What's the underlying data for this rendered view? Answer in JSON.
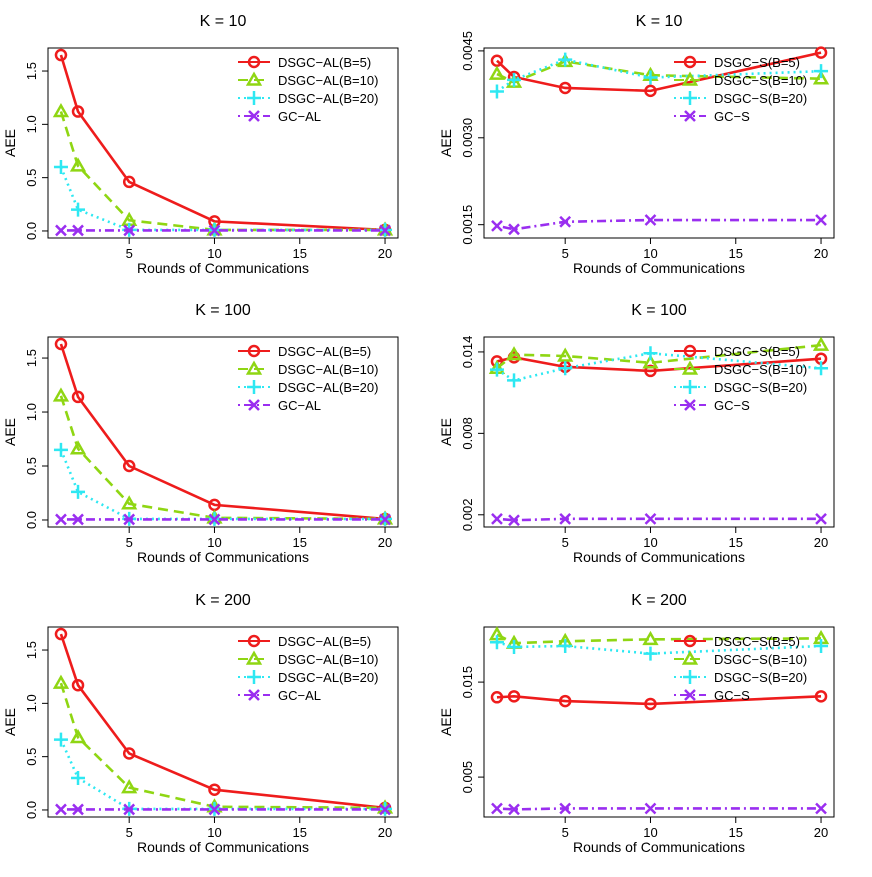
{
  "chart_data": [
    {
      "type": "line",
      "title": "K = 10",
      "xlabel": "Rounds of Communications",
      "ylabel": "AEE",
      "x": [
        1,
        2,
        5,
        10,
        20
      ],
      "xticks": [
        5,
        10,
        15,
        20
      ],
      "xtick_labels": [
        "5",
        "10",
        "15",
        "20"
      ],
      "xlim": [
        0.24,
        20.76
      ],
      "ylim": [
        -0.066,
        1.716
      ],
      "yticks": [
        0,
        0.5,
        1,
        1.5
      ],
      "ytick_labels": [
        "0.0",
        "0.5",
        "1.0",
        "1.5"
      ],
      "legend_position": "top-right",
      "series": [
        {
          "name": "DSGC−AL(B=5)",
          "values": [
            1.65,
            1.12,
            0.46,
            0.09,
            0.01
          ],
          "color": "#ee1c1c",
          "marker": "circle",
          "dash": "solid"
        },
        {
          "name": "DSGC−AL(B=10)",
          "values": [
            1.12,
            0.61,
            0.1,
            0.01,
            0.01
          ],
          "color": "#8fd613",
          "marker": "triangle",
          "dash": "dashed"
        },
        {
          "name": "DSGC−AL(B=20)",
          "values": [
            0.6,
            0.2,
            0.01,
            0.01,
            0.01
          ],
          "color": "#2ee8f2",
          "marker": "plus",
          "dash": "dotted"
        },
        {
          "name": "GC−AL",
          "values": [
            0.005,
            0.005,
            0.005,
            0.005,
            0.005
          ],
          "color": "#9a2ef0",
          "marker": "cross",
          "dash": "dotdash"
        }
      ]
    },
    {
      "type": "line",
      "title": "K = 10",
      "xlabel": "Rounds of Communications",
      "ylabel": "AEE",
      "x": [
        1,
        2,
        5,
        10,
        20
      ],
      "xticks": [
        5,
        10,
        15,
        20
      ],
      "xtick_labels": [
        "5",
        "10",
        "15",
        "20"
      ],
      "xlim": [
        0.24,
        20.76
      ],
      "ylim": [
        0.00127,
        0.00455
      ],
      "yticks": [
        0.0015,
        0.003,
        0.0045
      ],
      "ytick_labels": [
        "0.0015",
        "0.0030",
        "0.0045"
      ],
      "legend_position": "top-right",
      "series": [
        {
          "name": "DSGC−S(B=5)",
          "values": [
            0.00433,
            0.00405,
            0.00386,
            0.00381,
            0.00447
          ],
          "color": "#ee1c1c",
          "marker": "circle",
          "dash": "solid"
        },
        {
          "name": "DSGC−S(B=10)",
          "values": [
            0.0041,
            0.00396,
            0.00432,
            0.00408,
            0.00402
          ],
          "color": "#8fd613",
          "marker": "triangle",
          "dash": "dashed"
        },
        {
          "name": "DSGC−S(B=20)",
          "values": [
            0.0038,
            0.004,
            0.00435,
            0.00404,
            0.00415
          ],
          "color": "#2ee8f2",
          "marker": "plus",
          "dash": "dotted"
        },
        {
          "name": "GC−S",
          "values": [
            0.00148,
            0.00142,
            0.00155,
            0.00158,
            0.00158
          ],
          "color": "#9a2ef0",
          "marker": "cross",
          "dash": "dotdash"
        }
      ]
    },
    {
      "type": "line",
      "title": "K = 100",
      "xlabel": "Rounds of Communications",
      "ylabel": "AEE",
      "x": [
        1,
        2,
        5,
        10,
        20
      ],
      "xticks": [
        5,
        10,
        15,
        20
      ],
      "xtick_labels": [
        "5",
        "10",
        "15",
        "20"
      ],
      "xlim": [
        0.24,
        20.76
      ],
      "ylim": [
        -0.065,
        1.695
      ],
      "yticks": [
        0,
        0.5,
        1,
        1.5
      ],
      "ytick_labels": [
        "0.0",
        "0.5",
        "1.0",
        "1.5"
      ],
      "legend_position": "top-right",
      "series": [
        {
          "name": "DSGC−AL(B=5)",
          "values": [
            1.63,
            1.14,
            0.5,
            0.14,
            0.01
          ],
          "color": "#ee1c1c",
          "marker": "circle",
          "dash": "solid"
        },
        {
          "name": "DSGC−AL(B=10)",
          "values": [
            1.15,
            0.66,
            0.15,
            0.02,
            0.01
          ],
          "color": "#8fd613",
          "marker": "triangle",
          "dash": "dashed"
        },
        {
          "name": "DSGC−AL(B=20)",
          "values": [
            0.65,
            0.26,
            0.01,
            0.01,
            0.01
          ],
          "color": "#2ee8f2",
          "marker": "plus",
          "dash": "dotted"
        },
        {
          "name": "GC−AL",
          "values": [
            0.005,
            0.005,
            0.005,
            0.005,
            0.005
          ],
          "color": "#9a2ef0",
          "marker": "cross",
          "dash": "dotdash"
        }
      ]
    },
    {
      "type": "line",
      "title": "K = 100",
      "xlabel": "Rounds of Communications",
      "ylabel": "AEE",
      "x": [
        1,
        2,
        5,
        10,
        20
      ],
      "xticks": [
        5,
        10,
        15,
        20
      ],
      "xtick_labels": [
        "5",
        "10",
        "15",
        "20"
      ],
      "xlim": [
        0.24,
        20.76
      ],
      "ylim": [
        0.0011,
        0.0151
      ],
      "yticks": [
        0.002,
        0.008,
        0.014
      ],
      "ytick_labels": [
        "0.002",
        "0.008",
        "0.014"
      ],
      "legend_position": "top-right",
      "series": [
        {
          "name": "DSGC−S(B=5)",
          "values": [
            0.0133,
            0.0136,
            0.0129,
            0.0126,
            0.0135
          ],
          "color": "#ee1c1c",
          "marker": "circle",
          "dash": "solid"
        },
        {
          "name": "DSGC−S(B=10)",
          "values": [
            0.0128,
            0.0138,
            0.0137,
            0.0132,
            0.0145
          ],
          "color": "#8fd613",
          "marker": "triangle",
          "dash": "dashed"
        },
        {
          "name": "DSGC−S(B=20)",
          "values": [
            0.0127,
            0.0119,
            0.0128,
            0.0139,
            0.0128
          ],
          "color": "#2ee8f2",
          "marker": "plus",
          "dash": "dotted"
        },
        {
          "name": "GC−S",
          "values": [
            0.0017,
            0.0016,
            0.0017,
            0.0017,
            0.0017
          ],
          "color": "#9a2ef0",
          "marker": "cross",
          "dash": "dotdash"
        }
      ]
    },
    {
      "type": "line",
      "title": "K = 200",
      "xlabel": "Rounds of Communications",
      "ylabel": "AEE",
      "x": [
        1,
        2,
        5,
        10,
        20
      ],
      "xticks": [
        5,
        10,
        15,
        20
      ],
      "xtick_labels": [
        "5",
        "10",
        "15",
        "20"
      ],
      "xlim": [
        0.24,
        20.76
      ],
      "ylim": [
        -0.066,
        1.716
      ],
      "yticks": [
        0,
        0.5,
        1,
        1.5
      ],
      "ytick_labels": [
        "0.0",
        "0.5",
        "1.0",
        "1.5"
      ],
      "legend_position": "top-right",
      "series": [
        {
          "name": "DSGC−AL(B=5)",
          "values": [
            1.65,
            1.17,
            0.53,
            0.19,
            0.02
          ],
          "color": "#ee1c1c",
          "marker": "circle",
          "dash": "solid"
        },
        {
          "name": "DSGC−AL(B=10)",
          "values": [
            1.19,
            0.68,
            0.21,
            0.03,
            0.02
          ],
          "color": "#8fd613",
          "marker": "triangle",
          "dash": "dashed"
        },
        {
          "name": "DSGC−AL(B=20)",
          "values": [
            0.66,
            0.3,
            0.01,
            0.01,
            0.01
          ],
          "color": "#2ee8f2",
          "marker": "plus",
          "dash": "dotted"
        },
        {
          "name": "GC−AL",
          "values": [
            0.005,
            0.005,
            0.005,
            0.005,
            0.005
          ],
          "color": "#9a2ef0",
          "marker": "cross",
          "dash": "dotdash"
        }
      ]
    },
    {
      "type": "line",
      "title": "K = 200",
      "xlabel": "Rounds of Communications",
      "ylabel": "AEE",
      "x": [
        1,
        2,
        5,
        10,
        20
      ],
      "xticks": [
        5,
        10,
        15,
        20
      ],
      "xtick_labels": [
        "5",
        "10",
        "15",
        "20"
      ],
      "xlim": [
        0.24,
        20.76
      ],
      "ylim": [
        0.0008,
        0.0208
      ],
      "yticks": [
        0.005,
        0.015
      ],
      "ytick_labels": [
        "0.005",
        "0.015"
      ],
      "legend_position": "top-right",
      "series": [
        {
          "name": "DSGC−S(B=5)",
          "values": [
            0.0134,
            0.0135,
            0.013,
            0.0127,
            0.0135
          ],
          "color": "#ee1c1c",
          "marker": "circle",
          "dash": "solid"
        },
        {
          "name": "DSGC−S(B=10)",
          "values": [
            0.02,
            0.0191,
            0.0193,
            0.0195,
            0.0196
          ],
          "color": "#8fd613",
          "marker": "triangle",
          "dash": "dashed"
        },
        {
          "name": "DSGC−S(B=20)",
          "values": [
            0.0192,
            0.0187,
            0.0188,
            0.018,
            0.0188
          ],
          "color": "#2ee8f2",
          "marker": "plus",
          "dash": "dotted"
        },
        {
          "name": "GC−S",
          "values": [
            0.0017,
            0.0016,
            0.0017,
            0.0017,
            0.0017
          ],
          "color": "#9a2ef0",
          "marker": "cross",
          "dash": "dotdash"
        }
      ]
    }
  ]
}
